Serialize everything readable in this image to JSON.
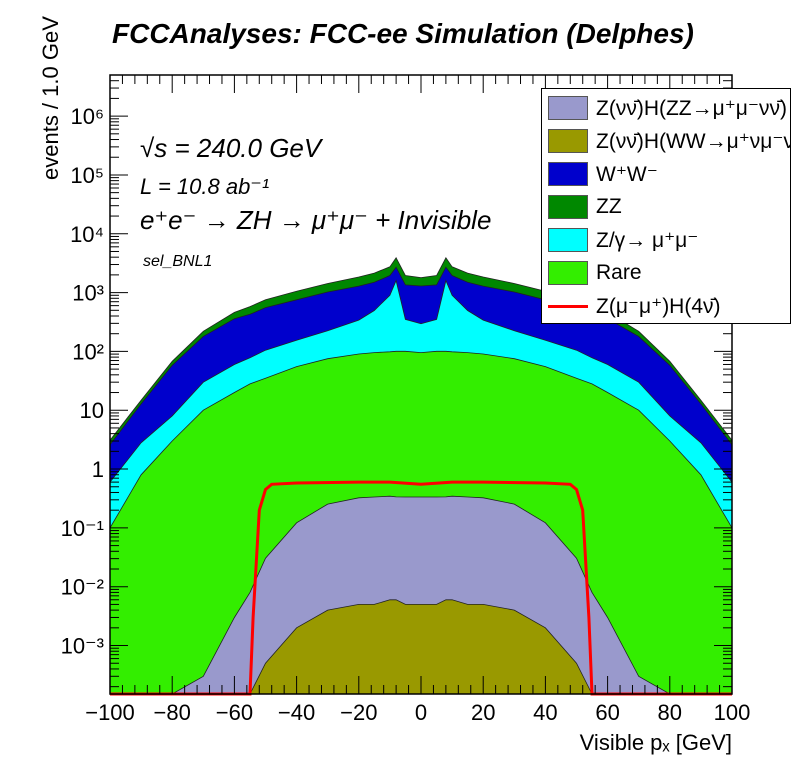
{
  "title": "FCCAnalyses: FCC-ee Simulation (Delphes)",
  "annotations": {
    "sqrt_s": "√s = 240.0 GeV",
    "lumi": "L = 10.8 ab⁻¹",
    "process": "e⁺e⁻ → ZH → μ⁺μ⁻ + Invisible",
    "selection": "sel_BNL1"
  },
  "chart_data": {
    "type": "area",
    "subtype": "stacked histogram with overlaid signal line",
    "xlabel": "Visible pₓ [GeV]",
    "ylabel": "events / 1.0 GeV",
    "xlim": [
      -100,
      100
    ],
    "ylim": [
      0.00015,
      5000000
    ],
    "yscale": "log",
    "grid": false,
    "legend_position": "top-right",
    "x_ticks": [
      "−100",
      "−80",
      "−60",
      "−40",
      "−20",
      "0",
      "20",
      "40",
      "60",
      "80",
      "100"
    ],
    "x_tick_values": [
      -100,
      -80,
      -60,
      -40,
      -20,
      0,
      20,
      40,
      60,
      80,
      100
    ],
    "y_ticks": [
      "10⁻³",
      "10⁻²",
      "10⁻¹",
      "1",
      "10",
      "10²",
      "10³",
      "10⁴",
      "10⁵",
      "10⁶"
    ],
    "y_tick_values": [
      0.001,
      0.01,
      0.1,
      1,
      10,
      100,
      1000,
      10000,
      100000,
      1000000
    ],
    "x": [
      -100,
      -90,
      -80,
      -70,
      -60,
      -55,
      -50,
      -40,
      -30,
      -20,
      -15,
      -10,
      -8,
      -5,
      0,
      5,
      8,
      10,
      15,
      20,
      30,
      40,
      50,
      55,
      60,
      70,
      80,
      90,
      100
    ],
    "stack_order": "bottom to top",
    "series": [
      {
        "name": "Z(νν̄)H(WW→μ⁺νμ⁻ν̄)",
        "color": "#999900",
        "values": [
          0,
          0,
          0,
          0,
          0,
          0,
          0.0005,
          0.002,
          0.004,
          0.005,
          0.005,
          0.006,
          0.006,
          0.005,
          0.005,
          0.005,
          0.006,
          0.006,
          0.005,
          0.005,
          0.004,
          0.002,
          0.0005,
          0,
          0,
          0,
          0,
          0,
          0
        ]
      },
      {
        "name": "Z(νν̄)H(ZZ→μ⁺μ⁻νν̄)",
        "color": "#9999cc",
        "values": [
          0,
          0,
          0,
          0.0003,
          0.003,
          0.008,
          0.03,
          0.12,
          0.25,
          0.32,
          0.33,
          0.34,
          0.33,
          0.33,
          0.33,
          0.33,
          0.33,
          0.34,
          0.33,
          0.32,
          0.25,
          0.12,
          0.03,
          0.008,
          0.003,
          0.0003,
          0,
          0,
          0
        ]
      },
      {
        "name": "Rare",
        "color": "#33ee00",
        "values": [
          0.1,
          0.8,
          3,
          10,
          20,
          28,
          35,
          55,
          75,
          90,
          95,
          98,
          100,
          100,
          95,
          100,
          100,
          98,
          95,
          90,
          75,
          55,
          35,
          28,
          20,
          10,
          3,
          0.8,
          0.1
        ]
      },
      {
        "name": "Z/γ→ μ⁺μ⁻",
        "color": "#00ffff",
        "values": [
          0.5,
          2,
          5,
          20,
          40,
          50,
          70,
          100,
          150,
          250,
          400,
          800,
          1500,
          250,
          200,
          250,
          1500,
          800,
          400,
          250,
          150,
          100,
          70,
          50,
          40,
          20,
          5,
          2,
          0.5
        ]
      },
      {
        "name": "W⁺W⁻",
        "color": "#0000cc",
        "values": [
          2,
          10,
          50,
          150,
          300,
          350,
          450,
          600,
          800,
          950,
          1000,
          1050,
          1100,
          1000,
          1000,
          1000,
          1100,
          1050,
          1000,
          950,
          800,
          600,
          450,
          350,
          300,
          150,
          50,
          10,
          2
        ]
      },
      {
        "name": "ZZ",
        "color": "#008800",
        "values": [
          0.5,
          2,
          10,
          40,
          100,
          150,
          200,
          300,
          400,
          550,
          650,
          800,
          1200,
          600,
          500,
          600,
          1200,
          800,
          650,
          550,
          400,
          300,
          200,
          150,
          100,
          40,
          10,
          2,
          0.5
        ]
      }
    ],
    "overlay": {
      "name": "Z(μ⁻μ⁺)H(4ν̄)",
      "color": "#ff0000",
      "x": [
        -100,
        -55,
        -54,
        -52,
        -50,
        -48,
        -40,
        -20,
        -10,
        0,
        10,
        20,
        40,
        48,
        50,
        52,
        54,
        55,
        100
      ],
      "values": [
        0.00015,
        0.00015,
        0.003,
        0.2,
        0.45,
        0.55,
        0.58,
        0.6,
        0.6,
        0.55,
        0.6,
        0.6,
        0.58,
        0.55,
        0.45,
        0.2,
        0.003,
        0.00015,
        0.00015
      ]
    }
  },
  "legend": {
    "items": [
      {
        "label": "Z(νν̄)H(ZZ→μ⁺μ⁻νν̄)",
        "color": "#9999cc",
        "kind": "fill"
      },
      {
        "label": "Z(νν̄)H(WW→μ⁺νμ⁻ν̄)",
        "color": "#999900",
        "kind": "fill"
      },
      {
        "label": "W⁺W⁻",
        "color": "#0000cc",
        "kind": "fill"
      },
      {
        "label": "ZZ",
        "color": "#008800",
        "kind": "fill"
      },
      {
        "label": "Z/γ→ μ⁺μ⁻",
        "color": "#00ffff",
        "kind": "fill"
      },
      {
        "label": "Rare",
        "color": "#33ee00",
        "kind": "fill"
      },
      {
        "label": "Z(μ⁻μ⁺)H(4ν̄)",
        "color": "#ff0000",
        "kind": "line"
      }
    ]
  }
}
